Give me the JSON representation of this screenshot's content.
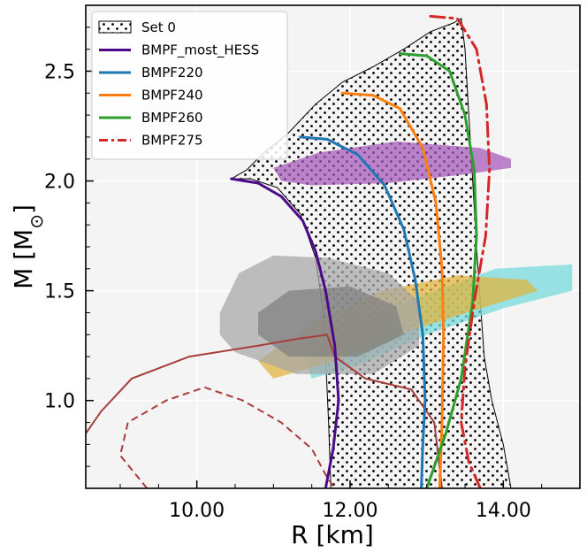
{
  "chart_data": {
    "type": "line",
    "xlabel": "R [km]",
    "ylabel": "M [M_⊙]",
    "xlim": [
      8.55,
      15.0
    ],
    "ylim": [
      0.6,
      2.8
    ],
    "grid": true,
    "legend_position": "top-left",
    "xticks": [
      {
        "value": 10.0,
        "label": "10.00"
      },
      {
        "value": 12.0,
        "label": "12.00"
      },
      {
        "value": 14.0,
        "label": "14.00"
      }
    ],
    "yticks": [
      {
        "value": 1.0,
        "label": "1.0"
      },
      {
        "value": 1.5,
        "label": "1.5"
      },
      {
        "value": 2.0,
        "label": "2.0"
      },
      {
        "value": 2.5,
        "label": "2.5"
      }
    ],
    "regions": [
      {
        "name": "Set 0",
        "kind": "hatched-band",
        "outline": [
          [
            10.45,
            2.01
          ],
          [
            10.65,
            2.05
          ],
          [
            10.85,
            2.12
          ],
          [
            11.2,
            2.22
          ],
          [
            11.55,
            2.35
          ],
          [
            11.9,
            2.45
          ],
          [
            12.3,
            2.52
          ],
          [
            12.7,
            2.6
          ],
          [
            13.05,
            2.68
          ],
          [
            13.35,
            2.72
          ],
          [
            13.45,
            2.74
          ],
          [
            13.5,
            2.6
          ],
          [
            13.55,
            2.3
          ],
          [
            13.6,
            2.0
          ],
          [
            13.65,
            1.7
          ],
          [
            13.7,
            1.45
          ],
          [
            13.75,
            1.2
          ],
          [
            13.85,
            1.0
          ],
          [
            14.0,
            0.8
          ],
          [
            14.1,
            0.6
          ],
          [
            11.75,
            0.6
          ],
          [
            11.72,
            0.9
          ],
          [
            11.68,
            1.2
          ],
          [
            11.65,
            1.4
          ],
          [
            11.55,
            1.65
          ],
          [
            11.35,
            1.85
          ],
          [
            11.05,
            1.97
          ],
          [
            10.7,
            2.01
          ]
        ]
      },
      {
        "name": "purple-band",
        "color": "#a457b8",
        "outline": [
          [
            11.0,
            2.06
          ],
          [
            11.6,
            2.13
          ],
          [
            12.6,
            2.18
          ],
          [
            13.7,
            2.15
          ],
          [
            14.1,
            2.1
          ],
          [
            14.1,
            2.06
          ],
          [
            13.5,
            2.03
          ],
          [
            12.5,
            1.99
          ],
          [
            11.5,
            1.98
          ],
          [
            11.1,
            2.0
          ]
        ]
      },
      {
        "name": "cyan-band",
        "color": "#75d9dd",
        "outline": [
          [
            11.4,
            1.2
          ],
          [
            11.9,
            1.3
          ],
          [
            12.8,
            1.46
          ],
          [
            13.9,
            1.6
          ],
          [
            14.9,
            1.62
          ],
          [
            14.9,
            1.5
          ],
          [
            14.0,
            1.42
          ],
          [
            13.0,
            1.3
          ],
          [
            12.1,
            1.16
          ],
          [
            11.5,
            1.1
          ]
        ]
      },
      {
        "name": "gold-band",
        "color": "#e0b33a",
        "outline": [
          [
            10.8,
            1.18
          ],
          [
            11.5,
            1.35
          ],
          [
            12.4,
            1.5
          ],
          [
            13.4,
            1.57
          ],
          [
            14.3,
            1.55
          ],
          [
            14.45,
            1.5
          ],
          [
            13.8,
            1.43
          ],
          [
            12.8,
            1.32
          ],
          [
            11.8,
            1.18
          ],
          [
            11.0,
            1.1
          ]
        ]
      },
      {
        "name": "gray-outer",
        "color": "#a6a6a6",
        "outline": [
          [
            10.3,
            1.4
          ],
          [
            10.55,
            1.58
          ],
          [
            11.0,
            1.66
          ],
          [
            11.7,
            1.65
          ],
          [
            12.5,
            1.58
          ],
          [
            12.9,
            1.45
          ],
          [
            12.9,
            1.25
          ],
          [
            12.3,
            1.12
          ],
          [
            11.3,
            1.12
          ],
          [
            10.5,
            1.22
          ],
          [
            10.3,
            1.3
          ]
        ]
      },
      {
        "name": "gray-inner",
        "color": "#808080",
        "outline": [
          [
            10.8,
            1.4
          ],
          [
            11.2,
            1.5
          ],
          [
            12.0,
            1.52
          ],
          [
            12.6,
            1.43
          ],
          [
            12.7,
            1.3
          ],
          [
            12.1,
            1.2
          ],
          [
            11.2,
            1.2
          ],
          [
            10.8,
            1.3
          ]
        ]
      }
    ],
    "contours": [
      {
        "name": "brown-solid",
        "color": "#a83d3d",
        "dash": false,
        "points": [
          [
            8.55,
            0.85
          ],
          [
            8.75,
            0.95
          ],
          [
            9.15,
            1.1
          ],
          [
            9.9,
            1.2
          ],
          [
            10.8,
            1.25
          ],
          [
            11.3,
            1.28
          ],
          [
            11.7,
            1.3
          ],
          [
            11.8,
            1.2
          ],
          [
            12.2,
            1.1
          ],
          [
            12.8,
            1.05
          ],
          [
            13.1,
            0.9
          ],
          [
            13.2,
            0.6
          ]
        ]
      },
      {
        "name": "brown-dashed",
        "color": "#a83d3d",
        "dash": true,
        "points": [
          [
            9.35,
            0.6
          ],
          [
            9.0,
            0.75
          ],
          [
            9.1,
            0.9
          ],
          [
            9.6,
            1.0
          ],
          [
            10.1,
            1.06
          ],
          [
            10.6,
            1.0
          ],
          [
            11.1,
            0.9
          ],
          [
            11.5,
            0.78
          ],
          [
            11.7,
            0.65
          ],
          [
            11.8,
            0.6
          ]
        ]
      }
    ],
    "series": [
      {
        "name": "BMPF_most_HESS",
        "color": "#4b0a8a",
        "dash": "solid",
        "x": [
          10.45,
          10.8,
          11.1,
          11.38,
          11.55,
          11.68,
          11.8,
          11.85,
          11.78,
          11.68
        ],
        "y": [
          2.01,
          1.99,
          1.93,
          1.82,
          1.68,
          1.5,
          1.25,
          1.0,
          0.78,
          0.6
        ]
      },
      {
        "name": "BMPF220",
        "color": "#1f77b4",
        "dash": "solid",
        "x": [
          11.35,
          11.7,
          12.1,
          12.45,
          12.7,
          12.85,
          12.95,
          12.98,
          12.95,
          12.93
        ],
        "y": [
          2.2,
          2.19,
          2.12,
          1.98,
          1.78,
          1.55,
          1.3,
          1.0,
          0.8,
          0.6
        ]
      },
      {
        "name": "BMPF240",
        "color": "#ff7f0e",
        "dash": "solid",
        "x": [
          11.9,
          12.3,
          12.65,
          12.95,
          13.12,
          13.2,
          13.22,
          13.2,
          13.17
        ],
        "y": [
          2.4,
          2.39,
          2.33,
          2.15,
          1.9,
          1.6,
          1.3,
          0.9,
          0.6
        ]
      },
      {
        "name": "BMPF260",
        "color": "#2ca02c",
        "dash": "solid",
        "x": [
          12.65,
          13.0,
          13.3,
          13.5,
          13.62,
          13.65,
          13.6,
          13.45,
          13.25,
          13.0
        ],
        "y": [
          2.58,
          2.57,
          2.5,
          2.3,
          2.05,
          1.75,
          1.45,
          1.1,
          0.85,
          0.6
        ]
      },
      {
        "name": "BMPF275",
        "color": "#d62728",
        "dash": "dashdot",
        "x": [
          13.05,
          13.4,
          13.65,
          13.78,
          13.82,
          13.77,
          13.62,
          13.5,
          13.45,
          13.55,
          13.7
        ],
        "y": [
          2.75,
          2.74,
          2.6,
          2.35,
          2.05,
          1.75,
          1.45,
          1.15,
          0.9,
          0.72,
          0.6
        ]
      }
    ],
    "legend": [
      {
        "label": "Set 0",
        "kind": "hatched"
      },
      {
        "label": "BMPF_most_HESS",
        "color": "#4b0a8a",
        "kind": "line"
      },
      {
        "label": "BMPF220",
        "color": "#1f77b4",
        "kind": "line"
      },
      {
        "label": "BMPF240",
        "color": "#ff7f0e",
        "kind": "line"
      },
      {
        "label": "BMPF260",
        "color": "#2ca02c",
        "kind": "line"
      },
      {
        "label": "BMPF275",
        "color": "#d62728",
        "kind": "dashdot"
      }
    ]
  }
}
